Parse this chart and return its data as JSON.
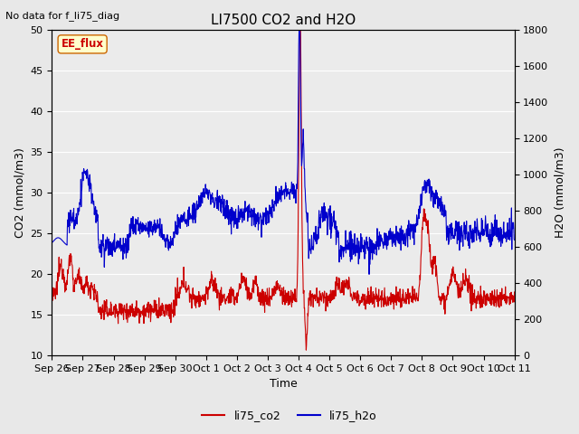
{
  "title": "LI7500 CO2 and H2O",
  "subtitle": "No data for f_li75_diag",
  "xlabel": "Time",
  "ylabel_left": "CO2 (mmol/m3)",
  "ylabel_right": "H2O (mmol/m3)",
  "ylim_left": [
    10,
    50
  ],
  "ylim_right": [
    0,
    1800
  ],
  "yticks_left": [
    10,
    15,
    20,
    25,
    30,
    35,
    40,
    45,
    50
  ],
  "yticks_right": [
    0,
    200,
    400,
    600,
    800,
    1000,
    1200,
    1400,
    1600,
    1800
  ],
  "xtick_labels": [
    "Sep 26",
    "Sep 27",
    "Sep 28",
    "Sep 29",
    "Sep 30",
    "Oct 1",
    "Oct 2",
    "Oct 3",
    "Oct 4",
    "Oct 5",
    "Oct 6",
    "Oct 7",
    "Oct 8",
    "Oct 9",
    "Oct 10",
    "Oct 11"
  ],
  "n_days": 15,
  "legend_labels": [
    "li75_co2",
    "li75_h2o"
  ],
  "co2_color": "#cc0000",
  "h2o_color": "#0000cc",
  "ee_flux_text_color": "#cc0000",
  "ee_flux_box_edge": "#cc6600",
  "ee_flux_box_face": "#ffffcc",
  "background_color": "#e8e8e8",
  "plot_bg_color": "#ebebeb",
  "grid_color": "#ffffff",
  "title_fontsize": 11,
  "label_fontsize": 9,
  "tick_fontsize": 8
}
